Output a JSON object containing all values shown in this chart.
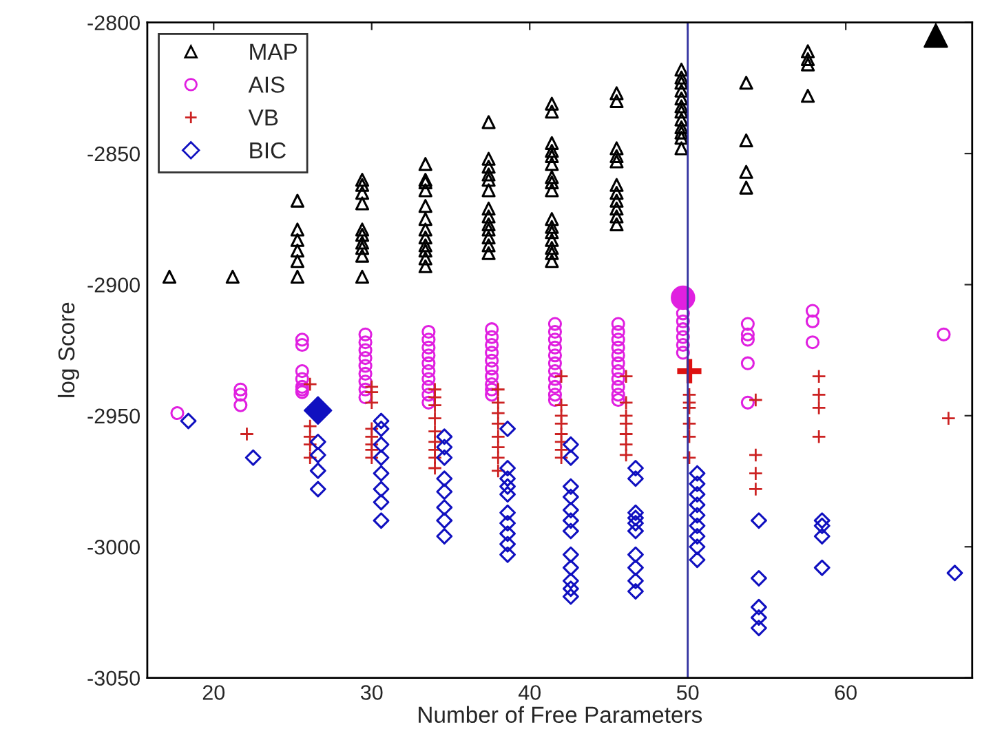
{
  "chart_data": {
    "type": "scatter",
    "xlabel": "Number of Free Parameters",
    "ylabel": "log Score",
    "xlim": [
      15.8,
      68
    ],
    "xticks": [
      20,
      30,
      40,
      50,
      60
    ],
    "ylim": [
      -3050,
      -2800
    ],
    "yticks": [
      -3050,
      -3000,
      -2950,
      -2900,
      -2850,
      -2800
    ],
    "legend": "top left",
    "grid": false,
    "ref_lines": [
      {
        "axis": "x",
        "value": 50,
        "color": "#3333a0",
        "line_style": "solid"
      }
    ],
    "series": [
      {
        "name": "MAP",
        "color": "#000000",
        "marker": "triangle",
        "x": [
          17.2,
          21.2,
          25.3,
          25.3,
          25.3,
          25.3,
          25.3,
          25.3,
          29.4,
          29.4,
          29.4,
          29.4,
          29.4,
          29.4,
          29.4,
          29.4,
          29.4,
          29.4,
          33.4,
          33.4,
          33.4,
          33.4,
          33.4,
          33.4,
          33.4,
          33.4,
          33.4,
          33.4,
          33.4,
          33.4,
          37.4,
          37.4,
          37.4,
          37.4,
          37.4,
          37.4,
          37.4,
          37.4,
          37.4,
          37.4,
          37.4,
          37.4,
          37.4,
          41.4,
          41.4,
          41.4,
          41.4,
          41.4,
          41.4,
          41.4,
          41.4,
          41.4,
          41.4,
          41.4,
          41.4,
          41.4,
          41.4,
          41.4,
          41.4,
          45.5,
          45.5,
          45.5,
          45.5,
          45.5,
          45.5,
          45.5,
          45.5,
          45.5,
          45.5,
          45.5,
          49.6,
          49.6,
          49.6,
          49.6,
          49.6,
          49.6,
          49.6,
          49.6,
          49.6,
          49.6,
          49.6,
          49.6,
          53.7,
          53.7,
          53.7,
          53.7,
          57.6,
          57.6,
          57.6,
          57.6
        ],
        "values": [
          -2897,
          -2897,
          -2868,
          -2879,
          -2883,
          -2887,
          -2891,
          -2897,
          -2860,
          -2862,
          -2865,
          -2869,
          -2879,
          -2881,
          -2884,
          -2886,
          -2889,
          -2897,
          -2854,
          -2860,
          -2861,
          -2864,
          -2870,
          -2875,
          -2879,
          -2882,
          -2885,
          -2887,
          -2890,
          -2893,
          -2838,
          -2852,
          -2855,
          -2858,
          -2860,
          -2864,
          -2871,
          -2874,
          -2877,
          -2879,
          -2882,
          -2885,
          -2888,
          -2831,
          -2834,
          -2846,
          -2849,
          -2851,
          -2854,
          -2859,
          -2861,
          -2864,
          -2875,
          -2878,
          -2880,
          -2883,
          -2886,
          -2888,
          -2891,
          -2827,
          -2830,
          -2848,
          -2851,
          -2853,
          -2862,
          -2865,
          -2868,
          -2871,
          -2874,
          -2877,
          -2818,
          -2821,
          -2823,
          -2826,
          -2829,
          -2832,
          -2834,
          -2837,
          -2840,
          -2842,
          -2844,
          -2848,
          -2823,
          -2845,
          -2857,
          -2863,
          -2811,
          -2814,
          -2816,
          -2828
        ]
      },
      {
        "name": "AIS",
        "color": "#e020e0",
        "marker": "circle",
        "x": [
          17.7,
          21.7,
          21.7,
          21.7,
          25.6,
          25.6,
          25.6,
          25.6,
          25.6,
          25.6,
          25.6,
          29.6,
          29.6,
          29.6,
          29.6,
          29.6,
          29.6,
          29.6,
          29.6,
          29.6,
          33.6,
          33.6,
          33.6,
          33.6,
          33.6,
          33.6,
          33.6,
          33.6,
          33.6,
          33.6,
          37.6,
          37.6,
          37.6,
          37.6,
          37.6,
          37.6,
          37.6,
          37.6,
          37.6,
          37.6,
          41.6,
          41.6,
          41.6,
          41.6,
          41.6,
          41.6,
          41.6,
          41.6,
          41.6,
          41.6,
          41.6,
          45.6,
          45.6,
          45.6,
          45.6,
          45.6,
          45.6,
          45.6,
          45.6,
          45.6,
          45.6,
          45.6,
          49.7,
          49.7,
          49.7,
          49.7,
          49.7,
          49.7,
          53.8,
          53.8,
          53.8,
          53.8,
          53.8,
          57.9,
          57.9,
          57.9,
          66.2
        ],
        "values": [
          -2949,
          -2940,
          -2942,
          -2946,
          -2921,
          -2923,
          -2933,
          -2936,
          -2939,
          -2940,
          -2941,
          -2919,
          -2922,
          -2925,
          -2928,
          -2931,
          -2934,
          -2937,
          -2940,
          -2943,
          -2918,
          -2921,
          -2924,
          -2927,
          -2930,
          -2933,
          -2936,
          -2939,
          -2942,
          -2945,
          -2917,
          -2920,
          -2923,
          -2926,
          -2929,
          -2932,
          -2935,
          -2938,
          -2940,
          -2942,
          -2915,
          -2918,
          -2921,
          -2924,
          -2927,
          -2930,
          -2933,
          -2936,
          -2939,
          -2942,
          -2944,
          -2915,
          -2918,
          -2921,
          -2924,
          -2927,
          -2930,
          -2933,
          -2936,
          -2939,
          -2942,
          -2944,
          -2911,
          -2914,
          -2917,
          -2920,
          -2923,
          -2926,
          -2915,
          -2919,
          -2921,
          -2930,
          -2945,
          -2910,
          -2914,
          -2922,
          -2919
        ]
      },
      {
        "name": "VB",
        "color": "#cc2222",
        "marker": "cross",
        "x": [
          22.1,
          26.1,
          26.1,
          26.1,
          26.1,
          26.1,
          30.0,
          30.0,
          30.0,
          30.0,
          30.0,
          30.0,
          30.0,
          30.0,
          34.0,
          34.0,
          34.0,
          34.0,
          34.0,
          34.0,
          34.0,
          34.0,
          34.0,
          38.0,
          38.0,
          38.0,
          38.0,
          38.0,
          38.0,
          38.0,
          38.0,
          42.0,
          42.0,
          42.0,
          42.0,
          42.0,
          42.0,
          42.0,
          42.0,
          46.1,
          46.1,
          46.1,
          46.1,
          46.1,
          46.1,
          46.1,
          50.1,
          50.1,
          50.1,
          50.1,
          50.1,
          50.1,
          54.3,
          54.3,
          54.3,
          54.3,
          58.3,
          58.3,
          58.3,
          58.3,
          66.5
        ],
        "values": [
          -2957,
          -2938,
          -2954,
          -2958,
          -2961,
          -2966,
          -2939,
          -2941,
          -2945,
          -2955,
          -2958,
          -2961,
          -2963,
          -2966,
          -2940,
          -2943,
          -2946,
          -2951,
          -2956,
          -2960,
          -2963,
          -2966,
          -2970,
          -2940,
          -2945,
          -2949,
          -2953,
          -2958,
          -2962,
          -2966,
          -2971,
          -2935,
          -2946,
          -2950,
          -2953,
          -2957,
          -2960,
          -2963,
          -2966,
          -2935,
          -2945,
          -2950,
          -2953,
          -2957,
          -2961,
          -2965,
          -2942,
          -2945,
          -2947,
          -2953,
          -2958,
          -2966,
          -2944,
          -2965,
          -2972,
          -2978,
          -2935,
          -2942,
          -2947,
          -2958,
          -2951
        ]
      },
      {
        "name": "BIC",
        "color": "#1010c0",
        "marker": "diamond",
        "x": [
          18.4,
          22.5,
          26.6,
          26.6,
          26.6,
          26.6,
          30.6,
          30.6,
          30.6,
          30.6,
          30.6,
          30.6,
          30.6,
          30.6,
          34.6,
          34.6,
          34.6,
          34.6,
          34.6,
          34.6,
          34.6,
          34.6,
          38.6,
          38.6,
          38.6,
          38.6,
          38.6,
          38.6,
          38.6,
          38.6,
          38.6,
          38.6,
          42.6,
          42.6,
          42.6,
          42.6,
          42.6,
          42.6,
          42.6,
          42.6,
          42.6,
          42.6,
          42.6,
          42.6,
          46.7,
          46.7,
          46.7,
          46.7,
          46.7,
          46.7,
          46.7,
          46.7,
          46.7,
          46.7,
          50.6,
          50.6,
          50.6,
          50.6,
          50.6,
          50.6,
          50.6,
          50.6,
          50.6,
          54.5,
          54.5,
          54.5,
          54.5,
          54.5,
          58.5,
          58.5,
          58.5,
          58.5,
          66.9
        ],
        "values": [
          -2952,
          -2966,
          -2960,
          -2965,
          -2971,
          -2978,
          -2952,
          -2955,
          -2961,
          -2966,
          -2972,
          -2978,
          -2983,
          -2990,
          -2958,
          -2962,
          -2966,
          -2974,
          -2979,
          -2985,
          -2990,
          -2996,
          -2955,
          -2970,
          -2974,
          -2977,
          -2980,
          -2987,
          -2991,
          -2995,
          -2999,
          -3003,
          -2961,
          -2966,
          -2977,
          -2981,
          -2986,
          -2990,
          -2994,
          -3003,
          -3008,
          -3013,
          -3016,
          -3019,
          -2970,
          -2974,
          -2987,
          -2991,
          -2994,
          -3003,
          -3008,
          -3013,
          -3017,
          -2989,
          -2972,
          -2976,
          -2980,
          -2984,
          -2988,
          -2992,
          -2996,
          -3000,
          -3005,
          -2990,
          -3012,
          -3023,
          -3027,
          -3031,
          -2990,
          -2992,
          -2996,
          -3008,
          -3010
        ]
      },
      {
        "color": "#000000",
        "marker": "triangle",
        "x": [
          65.7
        ],
        "values": [
          -2805
        ]
      },
      {
        "color": "#e020e0",
        "marker": "circle",
        "x": [
          49.7
        ],
        "values": [
          -2905
        ]
      },
      {
        "color": "#dd1111",
        "marker": "cross",
        "x": [
          50.1
        ],
        "values": [
          -2933
        ]
      },
      {
        "color": "#1010c0",
        "marker": "diamond",
        "x": [
          26.6
        ],
        "values": [
          -2948
        ]
      }
    ]
  }
}
